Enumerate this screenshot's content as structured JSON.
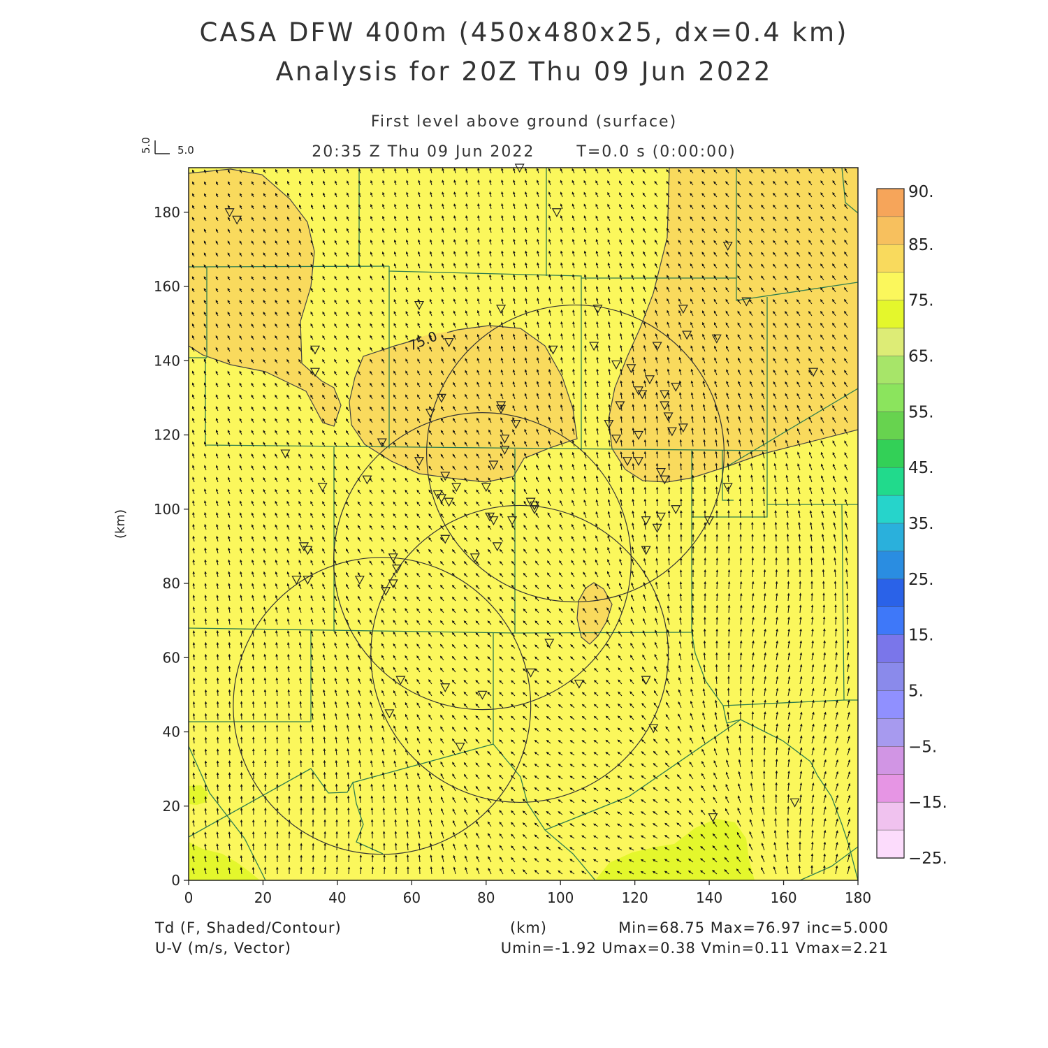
{
  "header": {
    "title_line1": "CASA DFW 400m (450x480x25, dx=0.4 km)",
    "title_line2": "Analysis for 20Z Thu 09 Jun 2022",
    "level": "First level above ground (surface)",
    "valid_time": "20:35 Z Thu 09 Jun 2022",
    "forecast_time": "T=0.0 s (0:00:00)"
  },
  "vector_key": {
    "u_label": "5.0",
    "v_label": "5.0"
  },
  "axes": {
    "ylabel": "(km)",
    "xlabel": "(km)",
    "x_ticks": [
      0,
      20,
      40,
      60,
      80,
      100,
      120,
      140,
      160,
      180
    ],
    "y_ticks": [
      0,
      20,
      40,
      60,
      80,
      100,
      120,
      140,
      160,
      180
    ],
    "xlim": [
      0,
      180
    ],
    "ylim": [
      0,
      192
    ]
  },
  "contour_label": "75.0",
  "colorbar": {
    "labels": [
      "90.",
      "85.",
      "75.",
      "65.",
      "55.",
      "45.",
      "35.",
      "25.",
      "15.",
      "5.",
      "−5.",
      "−15.",
      "−25."
    ],
    "colors": [
      "#f6a55a",
      "#f7c05e",
      "#f9da5d",
      "#fbf75c",
      "#e4f72c",
      "#ddec76",
      "#a7e569",
      "#8be45d",
      "#67d34f",
      "#33d057",
      "#21da8c",
      "#26d4cb",
      "#2ab0dc",
      "#2a8de1",
      "#2a62e8",
      "#3e78f9",
      "#7a76ea",
      "#8a8aeb",
      "#9090ff",
      "#a79aef",
      "#d195e4",
      "#e695e4",
      "#f0c2ef",
      "#fcdcfc"
    ]
  },
  "footer": {
    "field1": "Td (F, Shaded/Contour)",
    "field2": "U-V (m/s, Vector)",
    "xunit": "(km)",
    "stats1": "Min=68.75 Max=76.97 inc=5.000",
    "stats2": "Umin=-1.92 Umax=0.38 Vmin=0.11 Vmax=2.21"
  },
  "fill_colors": {
    "base": "#fbf75c",
    "warm": "#f9da5d",
    "cool": "#e4f72c",
    "boundary": "#2e7d4f"
  },
  "radar_rings_km": [
    {
      "cx": 52,
      "cy": 47,
      "r": 40
    },
    {
      "cx": 89,
      "cy": 61,
      "r": 40
    },
    {
      "cx": 79,
      "cy": 86,
      "r": 40
    },
    {
      "cx": 104,
      "cy": 115,
      "r": 40
    }
  ],
  "stations_km": [
    [
      11,
      180
    ],
    [
      13,
      178
    ],
    [
      34,
      143
    ],
    [
      34,
      137
    ],
    [
      26,
      115
    ],
    [
      36,
      106
    ],
    [
      31,
      90
    ],
    [
      32,
      89
    ],
    [
      29,
      81
    ],
    [
      32,
      81
    ],
    [
      46,
      81
    ],
    [
      48,
      108
    ],
    [
      52,
      118
    ],
    [
      53,
      78
    ],
    [
      55,
      80
    ],
    [
      55,
      87
    ],
    [
      56,
      84
    ],
    [
      57,
      54
    ],
    [
      54,
      45
    ],
    [
      62,
      155
    ],
    [
      65,
      126
    ],
    [
      62,
      113
    ],
    [
      70,
      145
    ],
    [
      68,
      130
    ],
    [
      67,
      104
    ],
    [
      68,
      103
    ],
    [
      69,
      109
    ],
    [
      70,
      102
    ],
    [
      72,
      106
    ],
    [
      69,
      92
    ],
    [
      69,
      52
    ],
    [
      73,
      36
    ],
    [
      77,
      87
    ],
    [
      79,
      50
    ],
    [
      80,
      106
    ],
    [
      81,
      98
    ],
    [
      82,
      97
    ],
    [
      83,
      90
    ],
    [
      82,
      112
    ],
    [
      84,
      127
    ],
    [
      84,
      128
    ],
    [
      85,
      116
    ],
    [
      85,
      119
    ],
    [
      84,
      154
    ],
    [
      87,
      97
    ],
    [
      88,
      123
    ],
    [
      89,
      192
    ],
    [
      92,
      102
    ],
    [
      93,
      101
    ],
    [
      93,
      100
    ],
    [
      92,
      56
    ],
    [
      97,
      64
    ],
    [
      98,
      143
    ],
    [
      99,
      180
    ],
    [
      105,
      53
    ],
    [
      110,
      154
    ],
    [
      109,
      144
    ],
    [
      113,
      123
    ],
    [
      115,
      139
    ],
    [
      115,
      119
    ],
    [
      116,
      128
    ],
    [
      118,
      113
    ],
    [
      121,
      120
    ],
    [
      121,
      113
    ],
    [
      121,
      132
    ],
    [
      119,
      138
    ],
    [
      122,
      131
    ],
    [
      123,
      97
    ],
    [
      123,
      89
    ],
    [
      124,
      135
    ],
    [
      123,
      54
    ],
    [
      125,
      41
    ],
    [
      126,
      144
    ],
    [
      127,
      110
    ],
    [
      128,
      108
    ],
    [
      128,
      128
    ],
    [
      128,
      131
    ],
    [
      129,
      125
    ],
    [
      130,
      121
    ],
    [
      131,
      100
    ],
    [
      131,
      133
    ],
    [
      133,
      122
    ],
    [
      126,
      95
    ],
    [
      127,
      98
    ],
    [
      133,
      154
    ],
    [
      134,
      147
    ],
    [
      140,
      97
    ],
    [
      141,
      17
    ],
    [
      142,
      146
    ],
    [
      145,
      106
    ],
    [
      145,
      171
    ],
    [
      150,
      156
    ],
    [
      163,
      21
    ],
    [
      168,
      137
    ]
  ]
}
